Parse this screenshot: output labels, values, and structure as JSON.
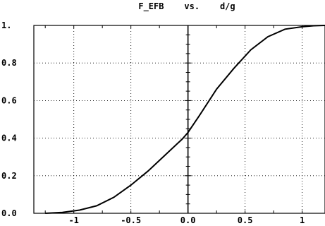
{
  "chart_data": {
    "type": "line",
    "title": "F_EFB    vs.    d/g",
    "xlabel": "",
    "ylabel": "",
    "xlim": [
      -1.35,
      1.2
    ],
    "ylim": [
      0,
      1.0
    ],
    "grid": true,
    "x_ticks": [
      -1,
      -0.5,
      0.0,
      0.5,
      1
    ],
    "x_tick_labels": [
      "-1",
      "-0.5",
      "0.0",
      "0.5",
      "1"
    ],
    "y_ticks": [
      0.0,
      0.2,
      0.4,
      0.6,
      0.8,
      1.0
    ],
    "y_tick_labels": [
      "0.0",
      "0.2",
      "0.4",
      "0.6",
      "0.8",
      "1."
    ],
    "series": [
      {
        "x": [
          -1.25,
          -1.1,
          -0.95,
          -0.8,
          -0.65,
          -0.5,
          -0.35,
          -0.2,
          -0.05,
          0.0,
          0.1,
          0.25,
          0.4,
          0.55,
          0.7,
          0.85,
          1.0,
          1.1,
          1.2
        ],
        "y": [
          0.0,
          0.005,
          0.017,
          0.04,
          0.085,
          0.15,
          0.225,
          0.31,
          0.395,
          0.43,
          0.52,
          0.66,
          0.77,
          0.87,
          0.94,
          0.98,
          0.993,
          0.998,
          1.0
        ]
      }
    ]
  }
}
